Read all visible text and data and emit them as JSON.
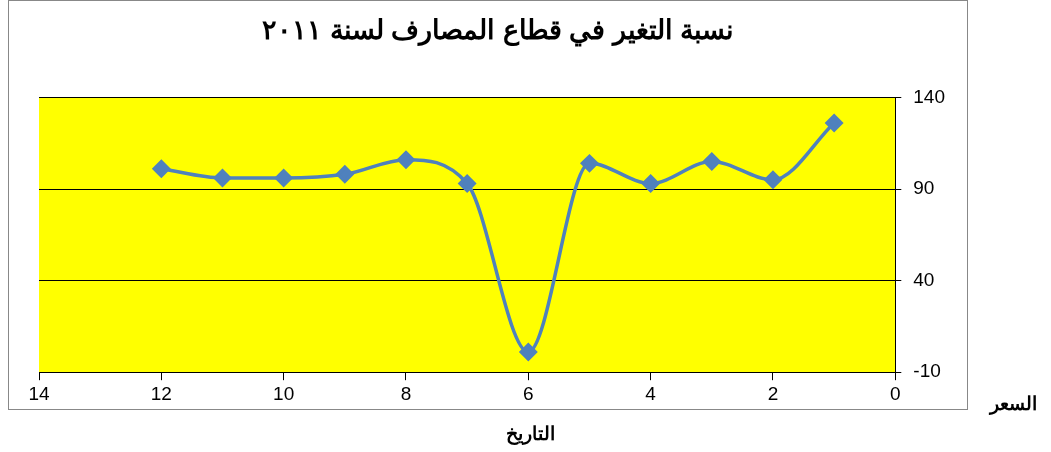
{
  "chart_data": {
    "type": "line",
    "title": "نسبة التغير في قطاع المصارف لسنة ٢٠١١",
    "xlabel": "التاريخ",
    "ylabel": "السعر",
    "x": [
      12,
      11,
      10,
      9,
      8,
      7,
      6,
      5,
      4,
      3,
      2,
      1
    ],
    "series": [
      {
        "color": "#4f81bd",
        "values": [
          101,
          96,
          96,
          98,
          106,
          93,
          1,
          104,
          93,
          105,
          95,
          126
        ]
      }
    ],
    "xlim": [
      14,
      0
    ],
    "xticks": [
      14,
      12,
      10,
      8,
      6,
      4,
      2,
      0
    ],
    "ylim": [
      -10,
      140
    ],
    "yticks": [
      -10,
      40,
      90,
      140
    ],
    "grid": "y",
    "marker": "diamond",
    "line_style": "solid"
  }
}
